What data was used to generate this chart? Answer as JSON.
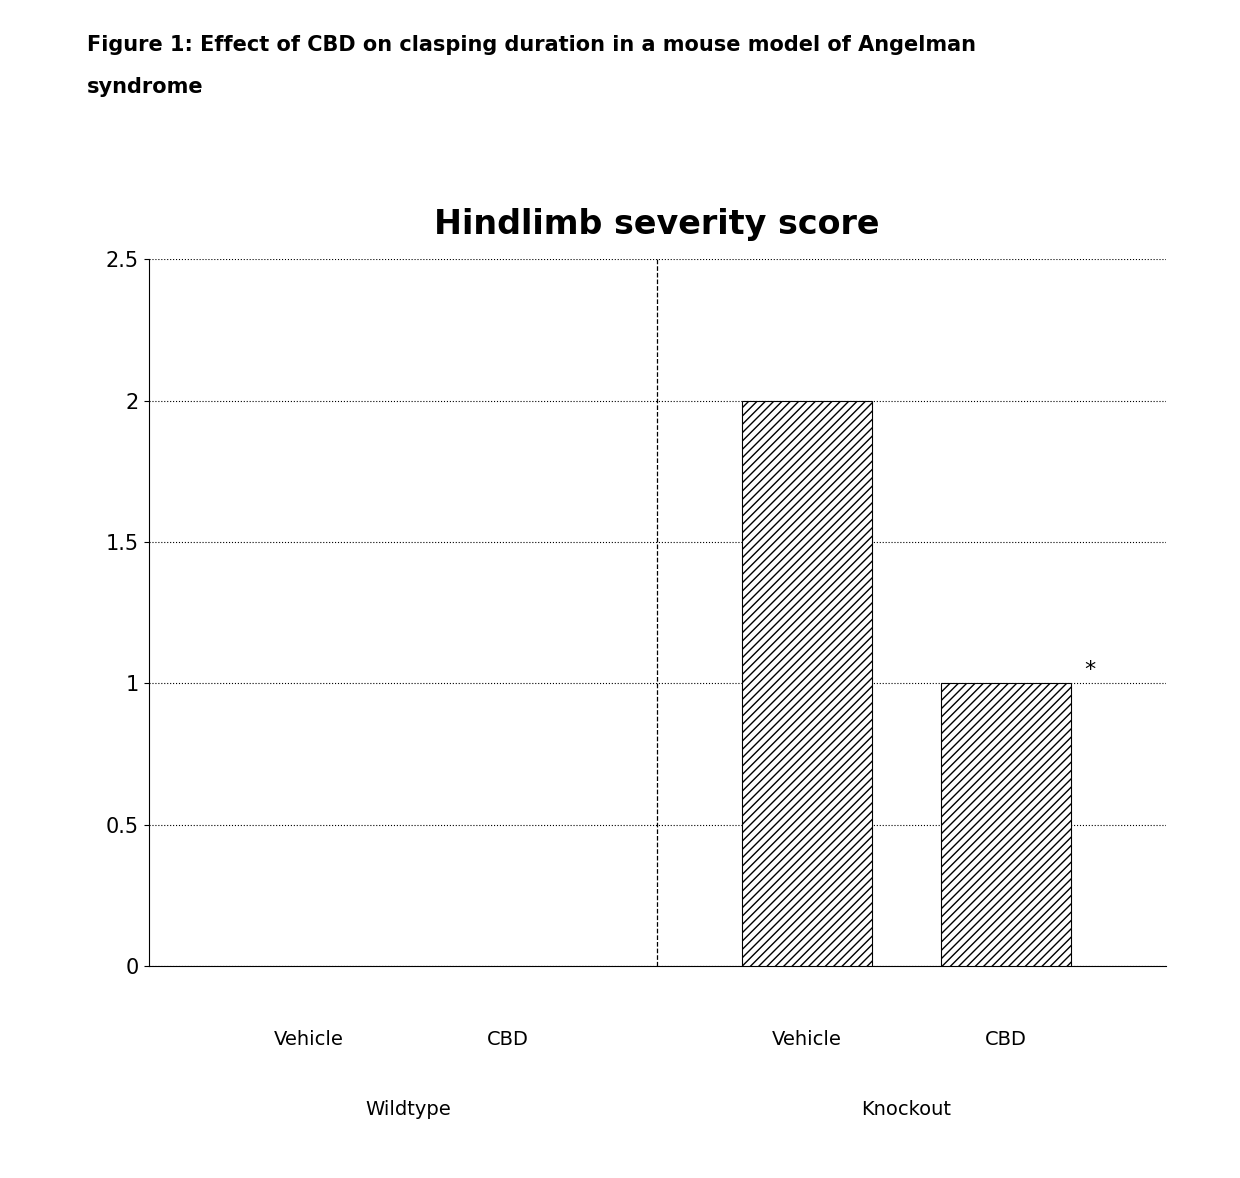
{
  "title": "Hindlimb severity score",
  "figure_caption_line1": "Figure 1: Effect of CBD on clasping duration in a mouse model of Angelman",
  "figure_caption_line2": "syndrome",
  "categories": [
    "Vehicle",
    "CBD",
    "Vehicle",
    "CBD"
  ],
  "values": [
    0,
    0,
    2,
    1
  ],
  "group_labels": [
    "Wildtype",
    "Knockout"
  ],
  "bar_labels": [
    "Vehicle",
    "CBD",
    "Vehicle",
    "CBD"
  ],
  "ylim": [
    0,
    2.5
  ],
  "yticks": [
    0,
    0.5,
    1,
    1.5,
    2,
    2.5
  ],
  "hatch": "////",
  "significance_bar": "*",
  "significance_bar_index": 3,
  "background_color": "#ffffff",
  "title_fontsize": 24,
  "caption_fontsize": 15,
  "tick_fontsize": 15,
  "label_fontsize": 14,
  "group_label_fontsize": 14
}
